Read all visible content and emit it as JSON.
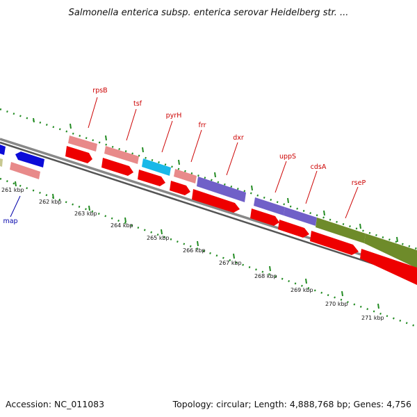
{
  "header": {
    "title": "Salmonella enterica subsp. enterica serovar Heidelberg str. ..."
  },
  "footer": {
    "accession": "Accession: NC_011083",
    "summary": "Topology: circular; Length: 4,888,768 bp; Genes: 4,756"
  },
  "colors": {
    "backbone": "#888888",
    "tick": "#228b22",
    "cds_red": "#ee0000",
    "pink_gene": "#e88a8a",
    "purple_gene": "#7060c8",
    "olive_gene": "#6e8b2a",
    "cyan_gene": "#19b8e8",
    "blue_gene": "#0b0bd8",
    "label_red": "#cc0000",
    "label_blue": "#0000aa"
  },
  "scale": {
    "tick_labels": [
      "261 kbp",
      "262 kbp",
      "263 kbp",
      "264 kbp",
      "265 kbp",
      "266 kbp",
      "267 kbp",
      "268 kbp",
      "269 kbp",
      "270 kbp",
      "271 kbp"
    ]
  },
  "genes": [
    {
      "name": "rpsB",
      "type": "pink"
    },
    {
      "name": "tsf",
      "type": "pink"
    },
    {
      "name": "pyrH",
      "type": "cyan"
    },
    {
      "name": "frr",
      "type": "pink"
    },
    {
      "name": "dxr",
      "type": "purple"
    },
    {
      "name": "uppS",
      "type": "purple"
    },
    {
      "name": "cdsA",
      "type": "purple"
    },
    {
      "name": "rseP",
      "type": "olive"
    },
    {
      "name": "map",
      "type": "blue"
    }
  ]
}
